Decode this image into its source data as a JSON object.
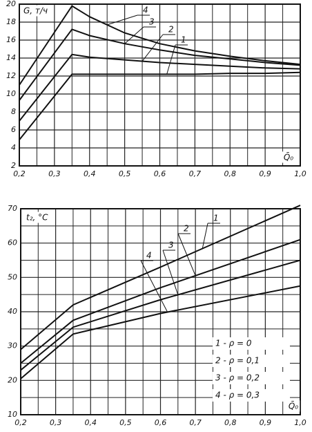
{
  "chart_data": [
    {
      "type": "line",
      "y_label": "G, т/ч",
      "x_label": "Q̄₀",
      "x": [
        0.2,
        0.35,
        0.4,
        0.5,
        0.6,
        0.7,
        0.8,
        0.9,
        1.0
      ],
      "xlim": [
        0.2,
        1.0
      ],
      "xticks": [
        {
          "value": 0.2,
          "label": "0,2"
        },
        {
          "value": 0.3,
          "label": "0,3"
        },
        {
          "value": 0.4,
          "label": "0,4"
        },
        {
          "value": 0.5,
          "label": "0,5"
        },
        {
          "value": 0.6,
          "label": "0,6"
        },
        {
          "value": 0.7,
          "label": "0,7"
        },
        {
          "value": 0.8,
          "label": "0,8"
        },
        {
          "value": 0.9,
          "label": "0,9"
        },
        {
          "value": 1.0,
          "label": "1,0"
        }
      ],
      "xminorticks": [
        0.25,
        0.35,
        0.45,
        0.55,
        0.65,
        0.75,
        0.85,
        0.95
      ],
      "ylim": [
        2,
        20
      ],
      "yticks": [
        2,
        4,
        6,
        8,
        10,
        12,
        14,
        16,
        18,
        20
      ],
      "grid": true,
      "series": [
        {
          "name": "1",
          "color": "#111",
          "values": [
            4.9,
            12.2,
            12.2,
            12.2,
            12.2,
            12.2,
            12.3,
            12.3,
            12.4
          ]
        },
        {
          "name": "2",
          "color": "#111",
          "values": [
            7.0,
            14.4,
            14.1,
            13.8,
            13.5,
            13.3,
            13.1,
            12.9,
            12.8
          ]
        },
        {
          "name": "3",
          "color": "#111",
          "values": [
            9.3,
            17.2,
            16.5,
            15.6,
            14.9,
            14.3,
            13.9,
            13.5,
            13.2
          ]
        },
        {
          "name": "4",
          "color": "#111",
          "values": [
            11.0,
            19.8,
            18.6,
            16.8,
            15.6,
            14.8,
            14.2,
            13.7,
            13.3
          ]
        }
      ]
    },
    {
      "type": "line",
      "y_label": "t₂, °C",
      "x_label": "Q̄₀",
      "x": [
        0.2,
        0.35,
        0.6,
        1.0
      ],
      "xlim": [
        0.2,
        1.0
      ],
      "xticks": [
        {
          "value": 0.2,
          "label": "0,2"
        },
        {
          "value": 0.3,
          "label": "0,3"
        },
        {
          "value": 0.4,
          "label": "0,4"
        },
        {
          "value": 0.5,
          "label": "0,5"
        },
        {
          "value": 0.6,
          "label": "0,6"
        },
        {
          "value": 0.7,
          "label": "0,7"
        },
        {
          "value": 0.8,
          "label": "0,8"
        },
        {
          "value": 0.9,
          "label": "0,9"
        },
        {
          "value": 1.0,
          "label": "1,0"
        }
      ],
      "xminorticks": [
        0.25,
        0.35,
        0.45,
        0.55,
        0.65,
        0.75,
        0.85,
        0.95
      ],
      "ylim": [
        10,
        70
      ],
      "yticks": [
        10,
        20,
        30,
        40,
        50,
        60,
        70
      ],
      "yminorticks": [
        15,
        25,
        35,
        45,
        55,
        65
      ],
      "grid": true,
      "series": [
        {
          "name": "1 - ρ = 0",
          "label": "1",
          "color": "#111",
          "values": [
            29,
            42,
            53,
            71
          ]
        },
        {
          "name": "2 - ρ = 0,1",
          "label": "2",
          "color": "#111",
          "values": [
            25,
            37.5,
            47,
            61
          ]
        },
        {
          "name": "3 - ρ = 0,2",
          "label": "3",
          "color": "#111",
          "values": [
            23,
            35.5,
            43.5,
            55
          ]
        },
        {
          "name": "4 - ρ = 0,3",
          "label": "4",
          "color": "#111",
          "values": [
            20.5,
            33.5,
            39.5,
            47.5
          ]
        }
      ]
    }
  ]
}
